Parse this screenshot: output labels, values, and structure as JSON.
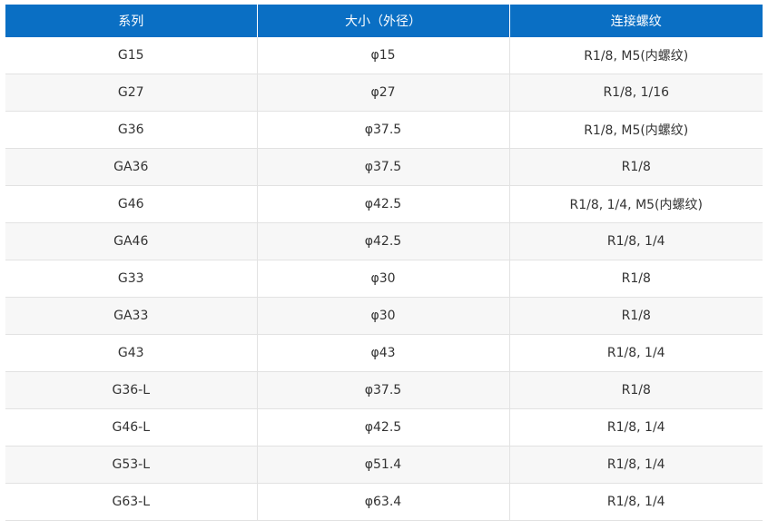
{
  "table": {
    "headers": [
      "系列",
      "大小（外径）",
      "连接螺纹"
    ],
    "rows": [
      [
        "G15",
        "φ15",
        "R1/8, M5(内螺纹)"
      ],
      [
        "G27",
        "φ27",
        "R1/8, 1/16"
      ],
      [
        "G36",
        "φ37.5",
        "R1/8, M5(内螺纹)"
      ],
      [
        "GA36",
        "φ37.5",
        "R1/8"
      ],
      [
        "G46",
        "φ42.5",
        "R1/8, 1/4, M5(内螺纹)"
      ],
      [
        "GA46",
        "φ42.5",
        "R1/8, 1/4"
      ],
      [
        "G33",
        "φ30",
        "R1/8"
      ],
      [
        "GA33",
        "φ30",
        "R1/8"
      ],
      [
        "G43",
        "φ43",
        "R1/8, 1/4"
      ],
      [
        "G36-L",
        "φ37.5",
        "R1/8"
      ],
      [
        "G46-L",
        "φ42.5",
        "R1/8, 1/4"
      ],
      [
        "G53-L",
        "φ51.4",
        "R1/8, 1/4"
      ],
      [
        "G63-L",
        "φ63.4",
        "R1/8, 1/4"
      ]
    ]
  },
  "colors": {
    "header_bg": "#0a6fc4",
    "header_text": "#ffffff",
    "row_alt_bg": "#f7f7f7",
    "border": "#e2e2e2",
    "cell_text": "#333333"
  }
}
